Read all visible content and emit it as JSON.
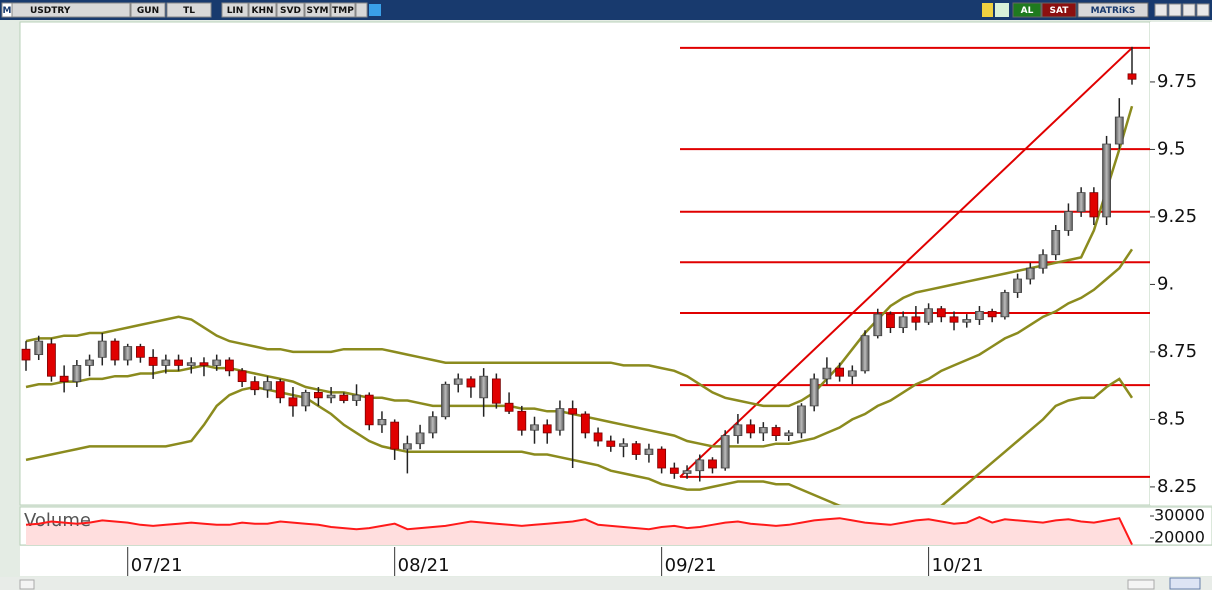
{
  "toolbar": {
    "left": [
      "M",
      "USDTRY",
      "GUN",
      "TL",
      "LIN",
      "KHN",
      "SVD",
      "SYM",
      "TMP"
    ],
    "right": [
      "AL",
      "SAT",
      "MATRiKS"
    ]
  },
  "chart_data": [
    {
      "type": "candlestick",
      "categories": [
        null,
        null,
        null,
        null,
        null,
        null,
        null,
        null,
        "07/21",
        null,
        null,
        null,
        null,
        null,
        null,
        null,
        null,
        null,
        null,
        null,
        null,
        null,
        null,
        null,
        null,
        null,
        null,
        null,
        null,
        "08/21",
        null,
        null,
        null,
        null,
        null,
        null,
        null,
        null,
        null,
        null,
        null,
        null,
        null,
        null,
        null,
        null,
        null,
        null,
        null,
        null,
        "09/21",
        null,
        null,
        null,
        null,
        null,
        null,
        null,
        null,
        null,
        null,
        null,
        null,
        null,
        null,
        null,
        null,
        null,
        null,
        null,
        null,
        "10/21",
        null,
        null,
        null,
        null,
        null,
        null,
        null,
        null,
        null,
        null,
        null,
        null,
        null,
        null,
        null,
        null
      ],
      "open": [
        8.76,
        8.74,
        8.78,
        8.66,
        8.64,
        8.7,
        8.73,
        8.79,
        8.72,
        8.77,
        8.73,
        8.7,
        8.72,
        8.7,
        8.71,
        8.7,
        8.72,
        8.68,
        8.64,
        8.61,
        8.64,
        8.58,
        8.55,
        8.6,
        8.58,
        8.59,
        8.57,
        8.59,
        8.48,
        8.49,
        8.39,
        8.41,
        8.45,
        8.51,
        8.63,
        8.65,
        8.58,
        8.65,
        8.56,
        8.53,
        8.46,
        8.48,
        8.46,
        8.54,
        8.52,
        8.45,
        8.42,
        8.4,
        8.41,
        8.37,
        8.39,
        8.32,
        8.3,
        8.31,
        8.35,
        8.32,
        8.44,
        8.48,
        8.45,
        8.47,
        8.44,
        8.45,
        8.55,
        8.65,
        8.69,
        8.66,
        8.68,
        8.81,
        8.89,
        8.84,
        8.88,
        8.86,
        8.91,
        8.88,
        8.86,
        8.87,
        8.9,
        8.88,
        8.97,
        9.02,
        9.06,
        9.11,
        9.2,
        9.27,
        9.34,
        9.25,
        9.52,
        9.78
      ],
      "high": [
        8.79,
        8.81,
        8.8,
        8.7,
        8.72,
        8.74,
        8.82,
        8.8,
        8.78,
        8.78,
        8.76,
        8.74,
        8.74,
        8.73,
        8.73,
        8.74,
        8.73,
        8.69,
        8.66,
        8.66,
        8.65,
        8.62,
        8.61,
        8.62,
        8.62,
        8.6,
        8.63,
        8.6,
        8.53,
        8.5,
        8.44,
        8.48,
        8.53,
        8.64,
        8.67,
        8.66,
        8.69,
        8.67,
        8.6,
        8.55,
        8.51,
        8.5,
        8.57,
        8.57,
        8.53,
        8.47,
        8.44,
        8.43,
        8.42,
        8.41,
        8.4,
        8.34,
        8.33,
        8.37,
        8.36,
        8.46,
        8.52,
        8.5,
        8.49,
        8.48,
        8.46,
        8.56,
        8.67,
        8.73,
        8.71,
        8.7,
        8.83,
        8.91,
        8.9,
        8.9,
        8.92,
        8.93,
        8.92,
        8.9,
        8.89,
        8.92,
        8.91,
        8.98,
        9.04,
        9.08,
        9.13,
        9.22,
        9.3,
        9.36,
        9.36,
        9.55,
        9.69,
        9.88
      ],
      "low": [
        8.68,
        8.72,
        8.64,
        8.6,
        8.62,
        8.66,
        8.7,
        8.7,
        8.7,
        8.71,
        8.65,
        8.67,
        8.68,
        8.67,
        8.66,
        8.68,
        8.66,
        8.62,
        8.59,
        8.58,
        8.56,
        8.51,
        8.53,
        8.55,
        8.56,
        8.56,
        8.55,
        8.46,
        8.45,
        8.35,
        8.3,
        8.39,
        8.43,
        8.5,
        8.6,
        8.58,
        8.51,
        8.54,
        8.52,
        8.44,
        8.41,
        8.41,
        8.44,
        8.32,
        8.43,
        8.4,
        8.38,
        8.36,
        8.35,
        8.34,
        8.3,
        8.28,
        8.28,
        8.27,
        8.3,
        8.31,
        8.41,
        8.43,
        8.42,
        8.42,
        8.42,
        8.43,
        8.53,
        8.63,
        8.64,
        8.63,
        8.67,
        8.8,
        8.82,
        8.82,
        8.83,
        8.85,
        8.86,
        8.83,
        8.84,
        8.85,
        8.86,
        8.87,
        8.95,
        9.0,
        9.04,
        9.09,
        9.18,
        9.25,
        9.22,
        9.22,
        9.5,
        9.74
      ],
      "close": [
        8.72,
        8.79,
        8.66,
        8.64,
        8.7,
        8.72,
        8.79,
        8.72,
        8.77,
        8.73,
        8.7,
        8.72,
        8.7,
        8.71,
        8.7,
        8.72,
        8.68,
        8.64,
        8.61,
        8.64,
        8.58,
        8.55,
        8.6,
        8.58,
        8.59,
        8.57,
        8.59,
        8.48,
        8.5,
        8.39,
        8.41,
        8.45,
        8.51,
        8.63,
        8.65,
        8.62,
        8.66,
        8.56,
        8.53,
        8.46,
        8.48,
        8.45,
        8.54,
        8.52,
        8.45,
        8.42,
        8.4,
        8.41,
        8.37,
        8.39,
        8.32,
        8.3,
        8.31,
        8.35,
        8.32,
        8.44,
        8.48,
        8.45,
        8.47,
        8.44,
        8.45,
        8.55,
        8.65,
        8.69,
        8.66,
        8.68,
        8.81,
        8.89,
        8.84,
        8.88,
        8.86,
        8.91,
        8.88,
        8.86,
        8.87,
        8.9,
        8.88,
        8.97,
        9.02,
        9.06,
        9.11,
        9.2,
        9.27,
        9.34,
        9.25,
        9.52,
        9.62,
        9.76
      ],
      "up_color": "#8a8a8a",
      "down_color": "#e00000",
      "series": [
        {
          "color": "#8b8b1e",
          "values": [
            8.79,
            8.8,
            8.8,
            8.81,
            8.81,
            8.82,
            8.82,
            8.83,
            8.84,
            8.85,
            8.86,
            8.87,
            8.88,
            8.87,
            8.84,
            8.81,
            8.79,
            8.78,
            8.77,
            8.76,
            8.76,
            8.75,
            8.75,
            8.75,
            8.75,
            8.76,
            8.76,
            8.76,
            8.76,
            8.75,
            8.74,
            8.73,
            8.72,
            8.71,
            8.71,
            8.71,
            8.71,
            8.71,
            8.71,
            8.71,
            8.71,
            8.71,
            8.71,
            8.71,
            8.71,
            8.71,
            8.71,
            8.7,
            8.7,
            8.7,
            8.69,
            8.68,
            8.66,
            8.63,
            8.6,
            8.58,
            8.57,
            8.56,
            8.55,
            8.55,
            8.55,
            8.57,
            8.6,
            8.65,
            8.7,
            8.76,
            8.82,
            8.87,
            8.92,
            8.95,
            8.97,
            8.98,
            8.99,
            9.0,
            9.01,
            9.02,
            9.03,
            9.04,
            9.05,
            9.06,
            9.07,
            9.08,
            9.09,
            9.1,
            9.2,
            9.35,
            9.5,
            9.66
          ]
        },
        {
          "color": "#8b8b1e",
          "values": [
            8.62,
            8.63,
            8.63,
            8.64,
            8.64,
            8.65,
            8.65,
            8.66,
            8.66,
            8.67,
            8.67,
            8.68,
            8.68,
            8.69,
            8.7,
            8.69,
            8.69,
            8.68,
            8.67,
            8.66,
            8.65,
            8.64,
            8.62,
            8.61,
            8.6,
            8.6,
            8.59,
            8.58,
            8.58,
            8.57,
            8.57,
            8.56,
            8.55,
            8.55,
            8.55,
            8.55,
            8.55,
            8.55,
            8.55,
            8.54,
            8.54,
            8.53,
            8.53,
            8.52,
            8.51,
            8.5,
            8.49,
            8.48,
            8.47,
            8.46,
            8.45,
            8.44,
            8.42,
            8.41,
            8.4,
            8.4,
            8.4,
            8.4,
            8.4,
            8.41,
            8.41,
            8.42,
            8.43,
            8.45,
            8.47,
            8.5,
            8.52,
            8.55,
            8.57,
            8.6,
            8.63,
            8.65,
            8.68,
            8.7,
            8.72,
            8.74,
            8.77,
            8.8,
            8.82,
            8.85,
            8.88,
            8.9,
            8.93,
            8.95,
            8.98,
            9.02,
            9.06,
            9.13
          ]
        },
        {
          "color": "#8b8b1e",
          "values": [
            8.35,
            8.36,
            8.37,
            8.38,
            8.39,
            8.4,
            8.4,
            8.4,
            8.4,
            8.4,
            8.4,
            8.4,
            8.41,
            8.42,
            8.48,
            8.55,
            8.59,
            8.61,
            8.62,
            8.61,
            8.6,
            8.59,
            8.58,
            8.55,
            8.52,
            8.48,
            8.45,
            8.42,
            8.4,
            8.39,
            8.38,
            8.38,
            8.38,
            8.38,
            8.38,
            8.38,
            8.38,
            8.38,
            8.38,
            8.38,
            8.37,
            8.37,
            8.36,
            8.35,
            8.34,
            8.33,
            8.31,
            8.3,
            8.29,
            8.28,
            8.26,
            8.25,
            8.24,
            8.24,
            8.25,
            8.26,
            8.27,
            8.27,
            8.27,
            8.26,
            8.26,
            8.24,
            8.22,
            8.2,
            8.18,
            8.17,
            8.16,
            8.14,
            8.12,
            8.1,
            8.12,
            8.15,
            8.18,
            8.22,
            8.26,
            8.3,
            8.34,
            8.38,
            8.42,
            8.46,
            8.5,
            8.55,
            8.57,
            8.58,
            8.58,
            8.62,
            8.65,
            8.58
          ]
        }
      ],
      "levels": {
        "color": "#e00000",
        "values": [
          9.876,
          9.501,
          9.269,
          9.082,
          8.894,
          8.627,
          8.287
        ]
      },
      "ylim": [
        8.183,
        9.972
      ],
      "yticks": [
        9.75,
        9.5,
        9.25,
        {
          "value": 9,
          "label": "9."
        },
        8.75,
        8.5,
        8.25
      ]
    },
    {
      "type": "area",
      "title": "Volume",
      "color": "#ff1a1a",
      "values": [
        26000,
        26500,
        27500,
        27000,
        26500,
        27000,
        28000,
        27500,
        27000,
        26000,
        25500,
        26000,
        26500,
        27000,
        26500,
        26000,
        26000,
        27000,
        26500,
        26500,
        27500,
        27000,
        26500,
        26000,
        25000,
        24500,
        24000,
        24500,
        25500,
        26500,
        24000,
        24500,
        25000,
        25500,
        26500,
        27500,
        27000,
        26500,
        26000,
        25500,
        26000,
        26500,
        27000,
        27500,
        28500,
        26000,
        25500,
        25000,
        24500,
        24000,
        25000,
        25500,
        24500,
        25000,
        26000,
        27000,
        27500,
        26500,
        26000,
        25500,
        26000,
        27000,
        28000,
        28500,
        29000,
        28000,
        27000,
        26500,
        26000,
        27000,
        28000,
        28500,
        27500,
        26500,
        27000,
        29500,
        27000,
        28500,
        28000,
        27500,
        27000,
        28000,
        28500,
        27500,
        27000,
        28000,
        29000,
        17000
      ],
      "ylim": [
        16800,
        34100
      ],
      "yticks": [
        30000,
        20000
      ]
    }
  ]
}
